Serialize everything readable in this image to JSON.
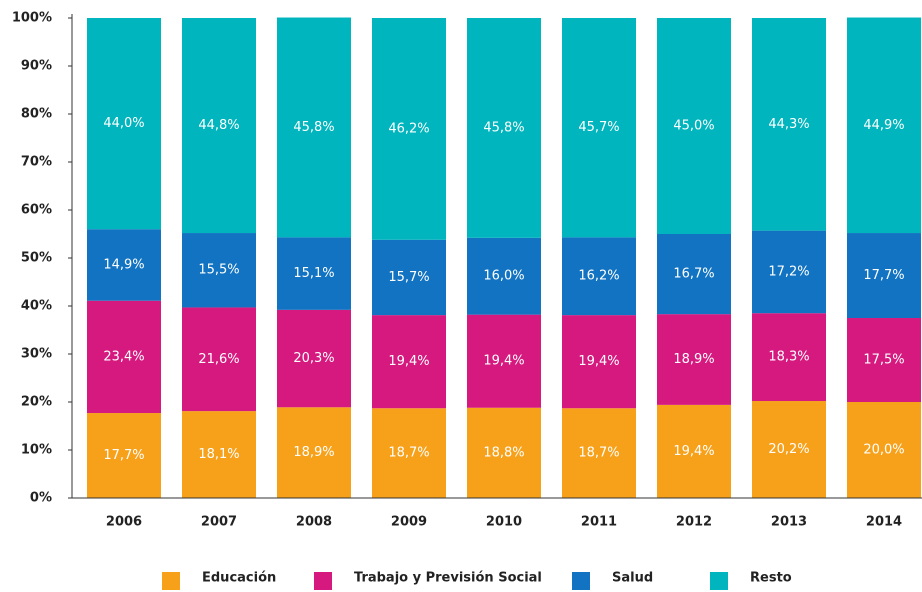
{
  "chart_data": {
    "type": "stacked_bar",
    "categories": [
      "2006",
      "2007",
      "2008",
      "2009",
      "2010",
      "2011",
      "2012",
      "2013",
      "2014"
    ],
    "series": [
      {
        "name": "Educación",
        "color": "#f7a11a",
        "values": [
          17.7,
          18.1,
          18.9,
          18.7,
          18.8,
          18.7,
          19.4,
          20.2,
          20.0
        ],
        "value_labels": [
          "17,7%",
          "18,1%",
          "18,9%",
          "18,7%",
          "18,8%",
          "18,7%",
          "19,4%",
          "20,2%",
          "20,0%"
        ]
      },
      {
        "name": "Trabajo y Previsión Social",
        "color": "#d6197f",
        "values": [
          23.4,
          21.6,
          20.3,
          19.4,
          19.4,
          19.4,
          18.9,
          18.3,
          17.5
        ],
        "value_labels": [
          "23,4%",
          "21,6%",
          "20,3%",
          "19,4%",
          "19,4%",
          "19,4%",
          "18,9%",
          "18,3%",
          "17,5%"
        ]
      },
      {
        "name": "Salud",
        "color": "#1173c1",
        "values": [
          14.9,
          15.5,
          15.1,
          15.7,
          16.0,
          16.2,
          16.7,
          17.2,
          17.7
        ],
        "value_labels": [
          "14,9%",
          "15,5%",
          "15,1%",
          "15,7%",
          "16,0%",
          "16,2%",
          "16,7%",
          "17,2%",
          "17,7%"
        ]
      },
      {
        "name": "Resto",
        "color": "#00b5bd",
        "values": [
          44.0,
          44.8,
          45.8,
          46.2,
          45.8,
          45.7,
          45.0,
          44.3,
          44.9
        ],
        "value_labels": [
          "44,0%",
          "44,8%",
          "45,8%",
          "46,2%",
          "45,8%",
          "45,7%",
          "45,0%",
          "44,3%",
          "44,9%"
        ]
      }
    ],
    "ylim": [
      0,
      100
    ],
    "yticks": [
      {
        "value": 0,
        "label": "0%"
      },
      {
        "value": 10,
        "label": "10%"
      },
      {
        "value": 20,
        "label": "20%"
      },
      {
        "value": 30,
        "label": "30%"
      },
      {
        "value": 40,
        "label": "40%"
      },
      {
        "value": 50,
        "label": "50%"
      },
      {
        "value": 60,
        "label": "60%"
      },
      {
        "value": 70,
        "label": "70%"
      },
      {
        "value": 80,
        "label": "80%"
      },
      {
        "value": 90,
        "label": "90%"
      },
      {
        "value": 100,
        "label": "100%"
      }
    ],
    "legend": "bottom"
  }
}
